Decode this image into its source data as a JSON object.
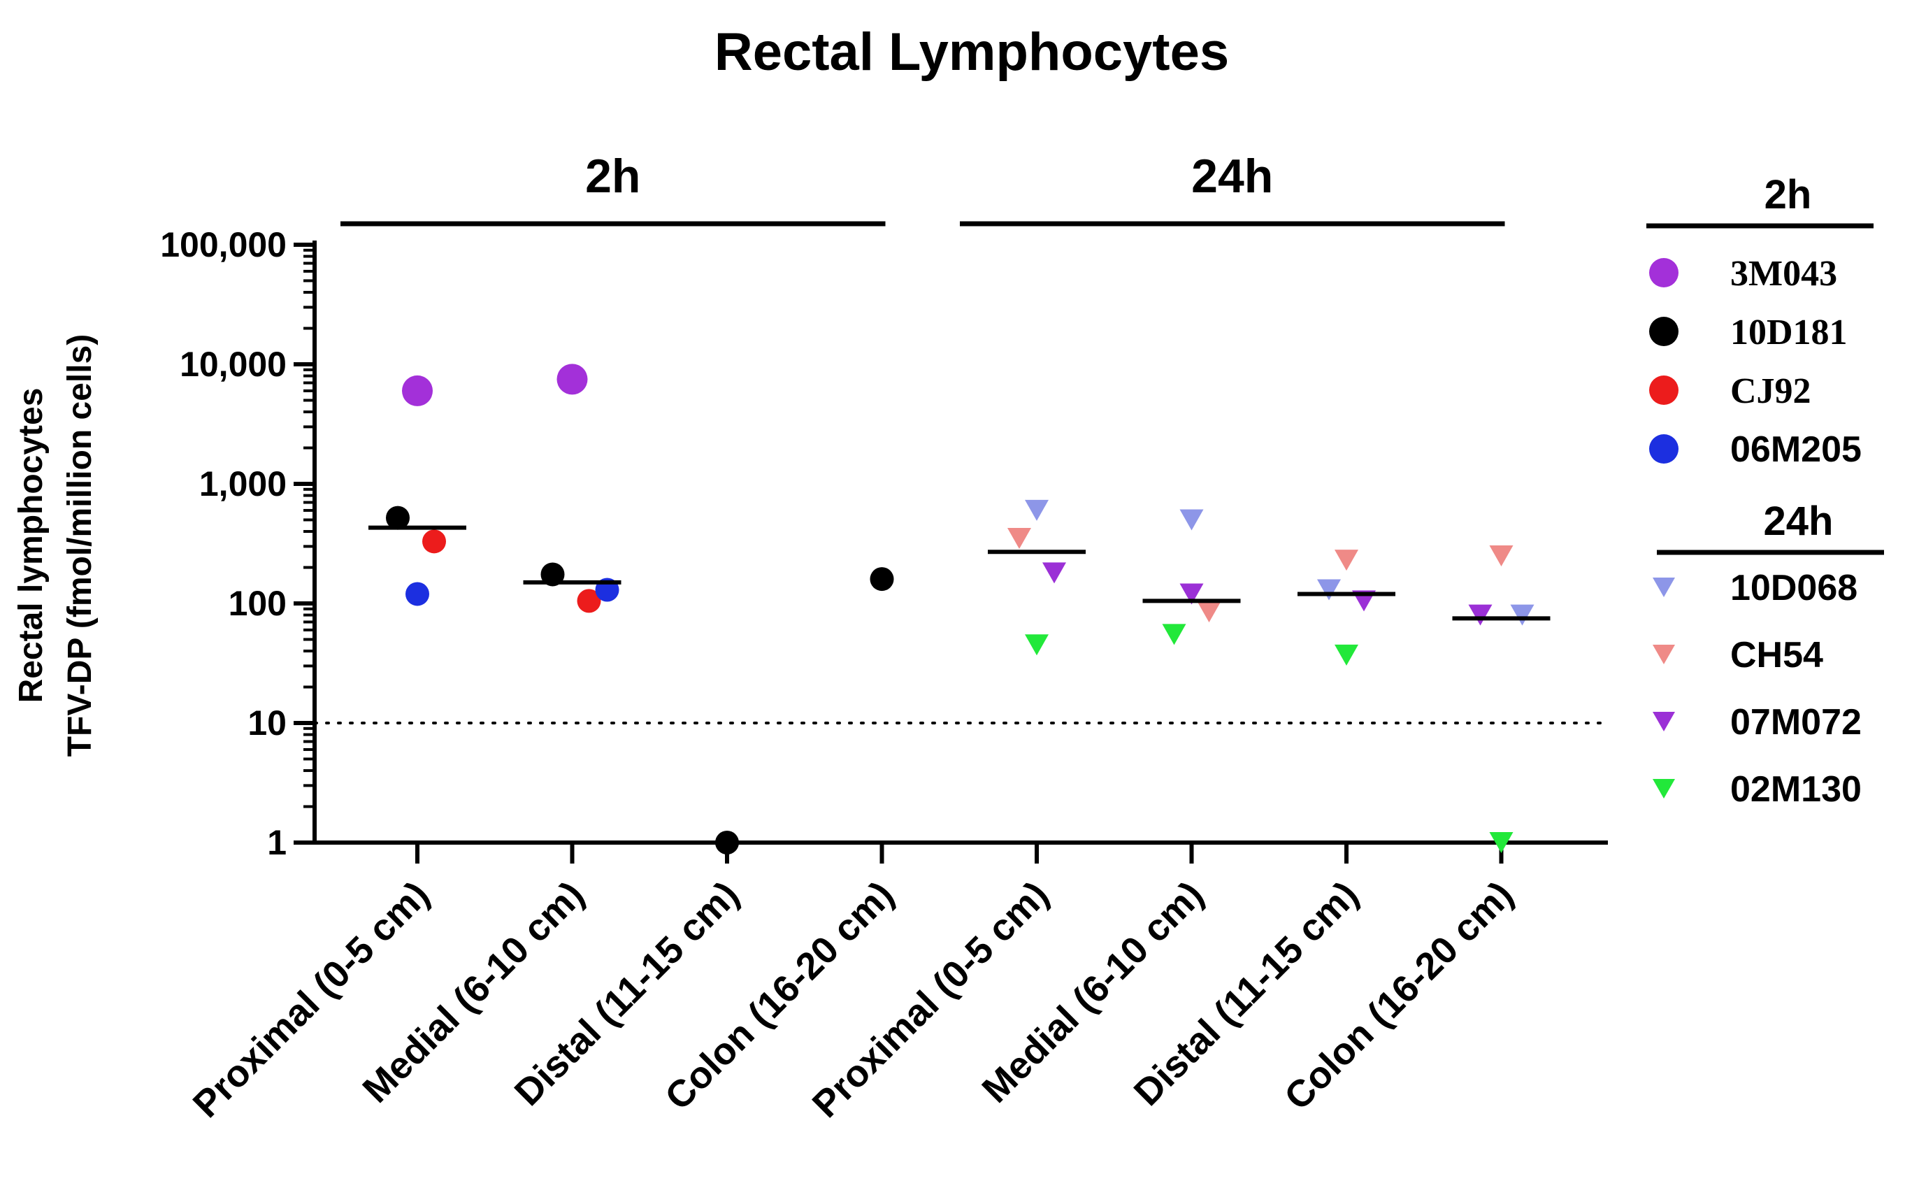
{
  "chart_data": {
    "type": "scatter",
    "title": "Rectal Lymphocytes",
    "ylabel_lines": [
      "Rectal lymphocytes",
      "TFV-DP (fmol/million cells)"
    ],
    "xlabel": "",
    "yscale": "log",
    "ylim": [
      1,
      100000
    ],
    "yticks": [
      {
        "value": 1,
        "label": "1"
      },
      {
        "value": 10,
        "label": "10"
      },
      {
        "value": 100,
        "label": "100"
      },
      {
        "value": 1000,
        "label": "1,000"
      },
      {
        "value": 10000,
        "label": "10,000"
      },
      {
        "value": 100000,
        "label": "100,000"
      }
    ],
    "reference_line": {
      "value": 10,
      "style": "dotted"
    },
    "categories": [
      "Proximal (0-5 cm)",
      "Medial (6-10 cm)",
      "Distal (11-15 cm)",
      "Colon (16-20 cm)",
      "Proximal (0-5 cm)",
      "Medial (6-10 cm)",
      "Distal (11-15 cm)",
      "Colon (16-20 cm)"
    ],
    "groups": [
      {
        "label": "2h",
        "categories": [
          0,
          1,
          2,
          3
        ]
      },
      {
        "label": "24h",
        "categories": [
          4,
          5,
          6,
          7
        ]
      }
    ],
    "medians": [
      430,
      150,
      null,
      null,
      270,
      105,
      120,
      75
    ],
    "legend_position": "right",
    "series": [
      {
        "name": "3M043",
        "group": "2h",
        "marker": "circle",
        "color": "#a330d9",
        "points": [
          {
            "category": 0,
            "value": 6000
          },
          {
            "category": 1,
            "value": 7500
          }
        ]
      },
      {
        "name": "10D181",
        "group": "2h",
        "marker": "circle",
        "color": "#000000",
        "points": [
          {
            "category": 0,
            "value": 520
          },
          {
            "category": 1,
            "value": 175
          },
          {
            "category": 2,
            "value": 1
          },
          {
            "category": 3,
            "value": 160
          }
        ]
      },
      {
        "name": "CJ92",
        "group": "2h",
        "marker": "circle",
        "color": "#ec1c1c",
        "points": [
          {
            "category": 0,
            "value": 330
          },
          {
            "category": 1,
            "value": 105
          }
        ]
      },
      {
        "name": "06M205",
        "group": "2h",
        "marker": "circle",
        "color": "#1c2fe0",
        "points": [
          {
            "category": 0,
            "value": 120
          },
          {
            "category": 1,
            "value": 130
          }
        ]
      },
      {
        "name": "10D068",
        "group": "24h",
        "marker": "triangle-down",
        "color": "#8d96e8",
        "points": [
          {
            "category": 4,
            "value": 600
          },
          {
            "category": 5,
            "value": 500
          },
          {
            "category": 6,
            "value": 130
          },
          {
            "category": 7,
            "value": 80
          }
        ]
      },
      {
        "name": "CH54",
        "group": "24h",
        "marker": "triangle-down",
        "color": "#ef8a87",
        "points": [
          {
            "category": 4,
            "value": 350
          },
          {
            "category": 5,
            "value": 85
          },
          {
            "category": 6,
            "value": 230
          },
          {
            "category": 7,
            "value": 250
          }
        ]
      },
      {
        "name": "07M072",
        "group": "24h",
        "marker": "triangle-down",
        "color": "#9b30d6",
        "points": [
          {
            "category": 4,
            "value": 180
          },
          {
            "category": 5,
            "value": 120
          },
          {
            "category": 6,
            "value": 105
          },
          {
            "category": 7,
            "value": 80
          }
        ]
      },
      {
        "name": "02M130",
        "group": "24h",
        "marker": "triangle-down",
        "color": "#22e83a",
        "points": [
          {
            "category": 4,
            "value": 45
          },
          {
            "category": 5,
            "value": 55
          },
          {
            "category": 6,
            "value": 37
          },
          {
            "category": 7,
            "value": 1
          }
        ]
      }
    ]
  }
}
